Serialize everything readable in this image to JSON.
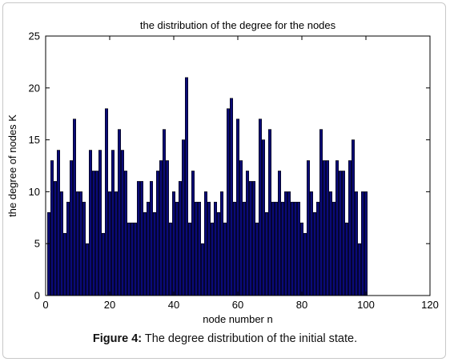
{
  "chart_data": {
    "type": "bar",
    "title": "the distribution of the degree for the nodes",
    "xlabel": "node number n",
    "ylabel": "the degree of nodes K",
    "xlim": [
      0,
      120
    ],
    "ylim": [
      0,
      25
    ],
    "xticks": [
      "0",
      "20",
      "40",
      "60",
      "80",
      "100",
      "120"
    ],
    "yticks": [
      "0",
      "5",
      "10",
      "15",
      "20",
      "25"
    ],
    "bar_color": "#0a0a78",
    "x": [
      1,
      2,
      3,
      4,
      5,
      6,
      7,
      8,
      9,
      10,
      11,
      12,
      13,
      14,
      15,
      16,
      17,
      18,
      19,
      20,
      21,
      22,
      23,
      24,
      25,
      26,
      27,
      28,
      29,
      30,
      31,
      32,
      33,
      34,
      35,
      36,
      37,
      38,
      39,
      40,
      41,
      42,
      43,
      44,
      45,
      46,
      47,
      48,
      49,
      50,
      51,
      52,
      53,
      54,
      55,
      56,
      57,
      58,
      59,
      60,
      61,
      62,
      63,
      64,
      65,
      66,
      67,
      68,
      69,
      70,
      71,
      72,
      73,
      74,
      75,
      76,
      77,
      78,
      79,
      80,
      81,
      82,
      83,
      84,
      85,
      86,
      87,
      88,
      89,
      90,
      91,
      92,
      93,
      94,
      95,
      96,
      97,
      98,
      99,
      100
    ],
    "values": [
      8,
      13,
      11,
      14,
      10,
      6,
      9,
      13,
      17,
      10,
      10,
      9,
      5,
      14,
      12,
      12,
      14,
      6,
      18,
      10,
      14,
      10,
      16,
      14,
      12,
      7,
      7,
      7,
      11,
      11,
      8,
      9,
      11,
      8,
      12,
      13,
      16,
      13,
      7,
      10,
      9,
      11,
      15,
      21,
      7,
      12,
      9,
      9,
      5,
      10,
      9,
      7,
      9,
      8,
      10,
      7,
      18,
      19,
      9,
      17,
      13,
      9,
      12,
      11,
      11,
      7,
      17,
      15,
      8,
      16,
      9,
      9,
      12,
      9,
      10,
      10,
      9,
      9,
      9,
      7,
      6,
      13,
      10,
      8,
      9,
      16,
      13,
      13,
      10,
      9,
      13,
      12,
      12,
      7,
      13,
      15,
      10,
      5,
      10,
      10
    ]
  },
  "caption": {
    "label": "Figure 4:",
    "text": " The degree distribution of the initial state."
  }
}
